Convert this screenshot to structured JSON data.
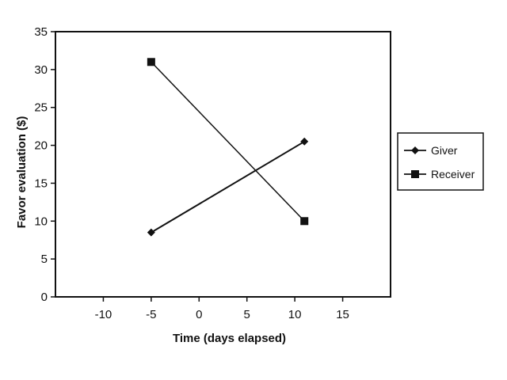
{
  "chart_data": {
    "type": "line",
    "title": "",
    "xlabel": "Time (days elapsed)",
    "ylabel": "Favor evaluation ($)",
    "xlim": [
      -15,
      20
    ],
    "ylim": [
      0,
      35
    ],
    "x_ticks": [
      -10,
      -5,
      0,
      5,
      10,
      15
    ],
    "y_ticks": [
      0,
      5,
      10,
      15,
      20,
      25,
      30,
      35
    ],
    "grid": false,
    "legend": "right",
    "series": [
      {
        "name": "Giver",
        "marker": "diamond",
        "color": "#111111",
        "x": [
          -5,
          11
        ],
        "y": [
          8.5,
          20.5
        ]
      },
      {
        "name": "Receiver",
        "marker": "square",
        "color": "#111111",
        "x": [
          -5,
          11
        ],
        "y": [
          31,
          10
        ]
      }
    ]
  }
}
